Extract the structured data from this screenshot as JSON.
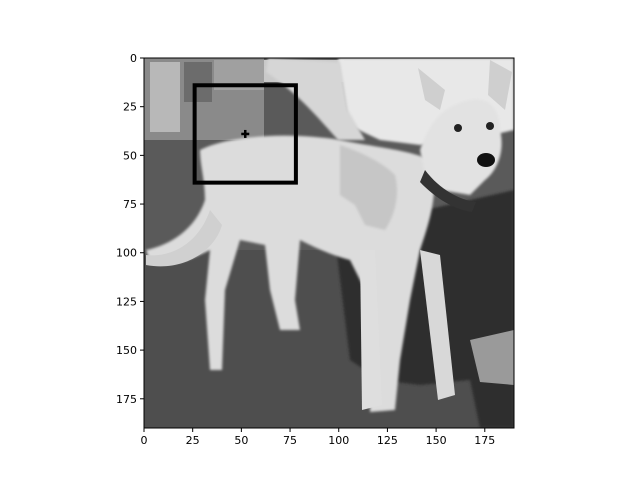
{
  "image": {
    "description_icon": "dog-photo-grayscale",
    "colors": {
      "box": "#000000",
      "marker": "#000000",
      "axes": "#000000"
    }
  },
  "axes": {
    "xlim": [
      0,
      190
    ],
    "ylim": [
      190,
      0
    ],
    "xticks": [
      0,
      25,
      50,
      75,
      100,
      125,
      150,
      175
    ],
    "yticks": [
      0,
      25,
      50,
      75,
      100,
      125,
      150,
      175
    ],
    "xtick_labels": [
      "0",
      "25",
      "50",
      "75",
      "100",
      "125",
      "150",
      "175"
    ],
    "ytick_labels": [
      "0",
      "25",
      "50",
      "75",
      "100",
      "125",
      "150",
      "175"
    ]
  },
  "annotations": {
    "box": {
      "x0": 26,
      "y0": 14,
      "x1": 78,
      "y1": 64
    },
    "marker": {
      "x": 52,
      "y": 39
    }
  }
}
